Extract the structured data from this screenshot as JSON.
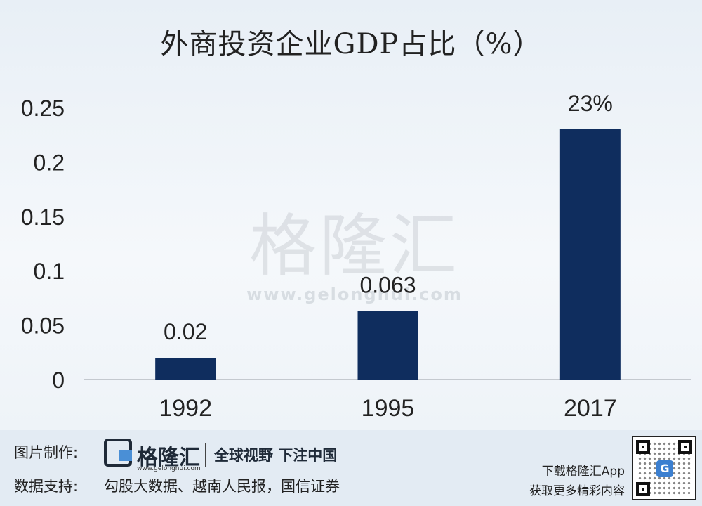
{
  "chart_data": {
    "type": "bar",
    "title": "外商投资企业GDP占比（%）",
    "categories": [
      "1992",
      "1995",
      "2017"
    ],
    "values": [
      0.02,
      0.063,
      0.23
    ],
    "data_labels": [
      "0.02",
      "0.063",
      "23%"
    ],
    "y_ticks": [
      "0",
      "0.05",
      "0.1",
      "0.15",
      "0.2",
      "0.25"
    ],
    "ylim": [
      0,
      0.25
    ],
    "grid": false,
    "legend": "none",
    "bar_color": "#0f2d5e"
  },
  "watermark": {
    "text": "格隆汇",
    "url": "www.gelonghui.com"
  },
  "footer": {
    "made_by_label": "图片制作:",
    "logo_name": "格隆汇",
    "logo_url": "www.gelonghui.com",
    "slogan": "全球视野 下注中国",
    "sources_label": "数据支持:",
    "sources": "勾股大数据、越南人民报，国信证券",
    "app_line1": "下载格隆汇App",
    "app_line2": "获取更多精彩内容",
    "qr_center_glyph": "G",
    "accent_color": "#4a8fd6"
  }
}
